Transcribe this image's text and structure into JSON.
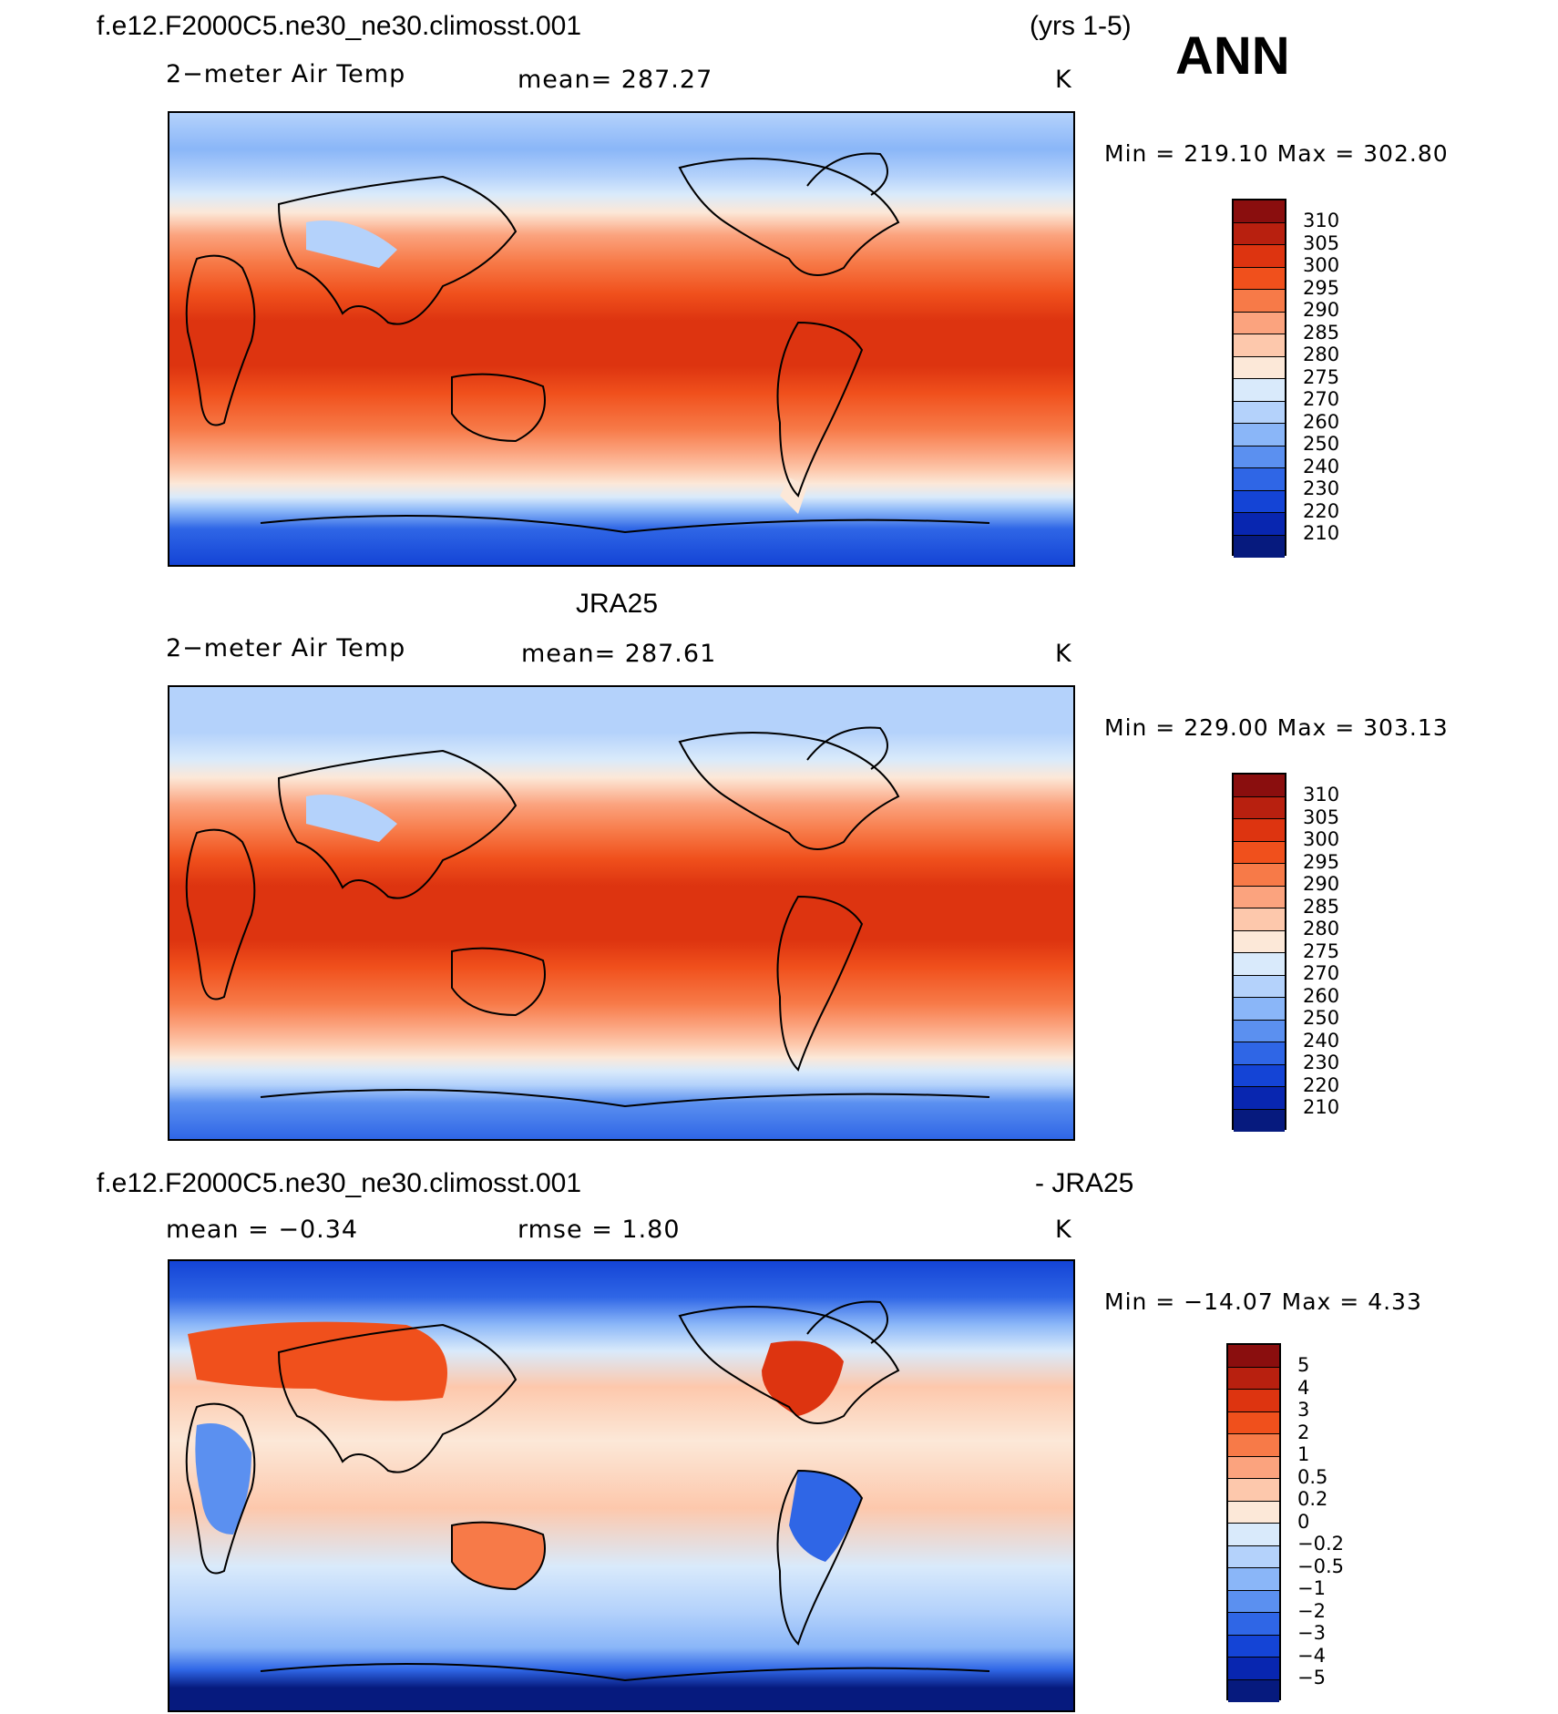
{
  "header": {
    "case_title": "f.e12.F2000C5.ne30_ne30.climosst.001",
    "years": "(yrs 1-5)",
    "season": "ANN"
  },
  "panels": [
    {
      "title": "",
      "variable": "2−meter Air Temp",
      "stat": "mean=  287.27",
      "units": "K",
      "minmax": "Min  =  219.10  Max  =  302.80",
      "colorbar": {
        "labels": [
          "310",
          "305",
          "300",
          "295",
          "290",
          "285",
          "280",
          "275",
          "270",
          "260",
          "250",
          "240",
          "230",
          "220",
          "210"
        ],
        "colors": [
          "#8a0e0e",
          "#b8200f",
          "#dd3410",
          "#f0501c",
          "#f77a48",
          "#fba37e",
          "#fdc8ac",
          "#fce8d8",
          "#d9eafb",
          "#b4d2fb",
          "#8ab6f8",
          "#5b90f0",
          "#2f66e6",
          "#1444d6",
          "#0826b0",
          "#061a7e"
        ]
      }
    },
    {
      "title": "JRA25",
      "variable": "2−meter Air Temp",
      "stat": "mean=  287.61",
      "units": "K",
      "minmax": "Min  =  229.00  Max  =  303.13",
      "colorbar": {
        "labels": [
          "310",
          "305",
          "300",
          "295",
          "290",
          "285",
          "280",
          "275",
          "270",
          "260",
          "250",
          "240",
          "230",
          "220",
          "210"
        ],
        "colors": [
          "#8a0e0e",
          "#b8200f",
          "#dd3410",
          "#f0501c",
          "#f77a48",
          "#fba37e",
          "#fdc8ac",
          "#fce8d8",
          "#d9eafb",
          "#b4d2fb",
          "#8ab6f8",
          "#5b90f0",
          "#2f66e6",
          "#1444d6",
          "#0826b0",
          "#061a7e"
        ]
      }
    },
    {
      "title_left": "f.e12.F2000C5.ne30_ne30.climosst.001",
      "title_right": "- JRA25",
      "stat_mean": "mean  =    −0.34",
      "stat_rmse": "rmse  =     1.80",
      "units": "K",
      "minmax": "Min  =  −14.07  Max  =     4.33",
      "colorbar": {
        "labels": [
          "5",
          "4",
          "3",
          "2",
          "1",
          "0.5",
          "0.2",
          "0",
          "−0.2",
          "−0.5",
          "−1",
          "−2",
          "−3",
          "−4",
          "−5"
        ],
        "colors": [
          "#8a0e0e",
          "#b8200f",
          "#dd3410",
          "#f0501c",
          "#f77a48",
          "#fba37e",
          "#fdc8ac",
          "#fce8d8",
          "#d9eafb",
          "#b4d2fb",
          "#8ab6f8",
          "#5b90f0",
          "#2f66e6",
          "#1444d6",
          "#0826b0",
          "#061a7e"
        ]
      }
    }
  ]
}
